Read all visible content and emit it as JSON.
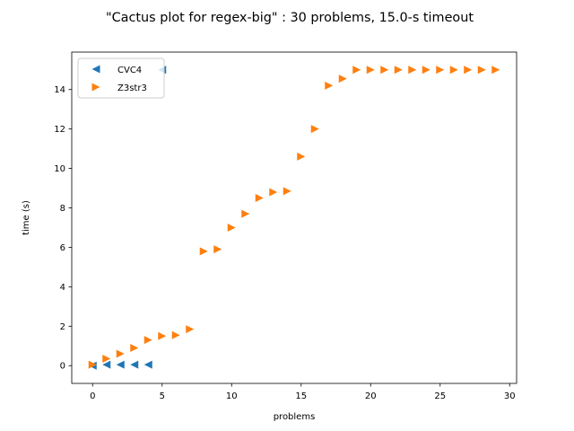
{
  "chart_data": {
    "type": "scatter",
    "title": "\"Cactus plot for regex-big\" : 30 problems, 15.0-s timeout",
    "xlabel": "problems",
    "ylabel": "time (s)",
    "xlim": [
      -1.5,
      30.5
    ],
    "ylim": [
      -0.9,
      15.9
    ],
    "xticks": [
      0,
      5,
      10,
      15,
      20,
      25,
      30
    ],
    "yticks": [
      0,
      2,
      4,
      6,
      8,
      10,
      12,
      14
    ],
    "grid": false,
    "legend_position": "upper-left",
    "series": [
      {
        "name": "CVC4",
        "marker": "triangle-left",
        "color": "#1f77b4",
        "x": [
          0,
          1,
          2,
          3,
          4,
          5
        ],
        "y": [
          0.0,
          0.05,
          0.05,
          0.05,
          0.05,
          15.0
        ]
      },
      {
        "name": "Z3str3",
        "marker": "triangle-right",
        "color": "#ff7f0e",
        "x": [
          0,
          1,
          2,
          3,
          4,
          5,
          6,
          7,
          8,
          9,
          10,
          11,
          12,
          13,
          14,
          15,
          16,
          17,
          18,
          19,
          20,
          21,
          22,
          23,
          24,
          25,
          26,
          27,
          28,
          29
        ],
        "y": [
          0.05,
          0.35,
          0.6,
          0.9,
          1.3,
          1.5,
          1.55,
          1.85,
          5.8,
          5.9,
          7.0,
          7.7,
          8.5,
          8.8,
          8.85,
          10.6,
          12.0,
          14.2,
          14.55,
          15.0,
          15.0,
          15.0,
          15.0,
          15.0,
          15.0,
          15.0,
          15.0,
          15.0,
          15.0,
          15.0
        ]
      }
    ]
  }
}
